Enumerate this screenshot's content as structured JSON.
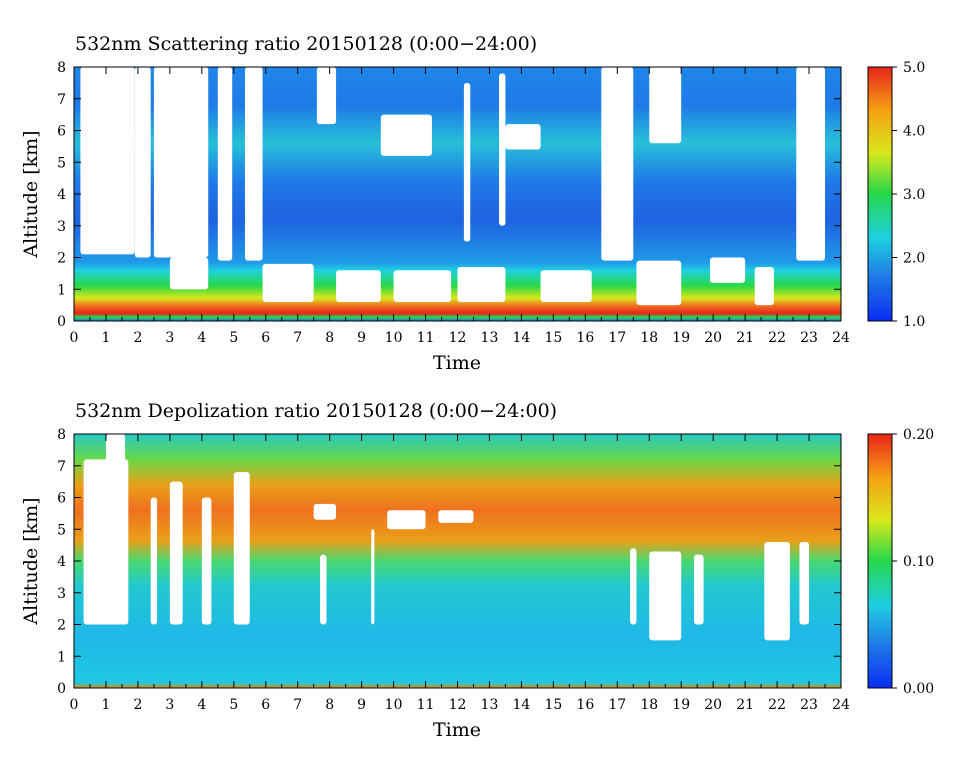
{
  "chart_data": [
    {
      "type": "heatmap",
      "title": "532nm Scattering ratio  20150128 (0:00−24:00)",
      "xlabel": "Time",
      "ylabel": "Altitude [km]",
      "xlim": [
        0,
        24
      ],
      "ylim": [
        0,
        8
      ],
      "x_ticks": [
        "0",
        "1",
        "2",
        "3",
        "4",
        "5",
        "6",
        "7",
        "8",
        "9",
        "10",
        "11",
        "12",
        "13",
        "14",
        "15",
        "16",
        "17",
        "18",
        "19",
        "20",
        "21",
        "22",
        "23",
        "24"
      ],
      "y_ticks": [
        "0",
        "1",
        "2",
        "3",
        "4",
        "5",
        "6",
        "7",
        "8"
      ],
      "colorbar": {
        "range": [
          1.0,
          5.0
        ],
        "ticks": [
          "1.0",
          "2.0",
          "3.0",
          "4.0",
          "5.0"
        ]
      },
      "colormap": [
        "#0a2cf0",
        "#1f7ae8",
        "#1fd0e0",
        "#26d84a",
        "#d9e81a",
        "#f5a014",
        "#e8241a"
      ],
      "grid": false,
      "features": {
        "boundary_layer_top_km": 1.8,
        "high_near_surface_band_km": [
          0.3,
          0.55
        ],
        "cloud_gaps_masked_white": true
      }
    },
    {
      "type": "heatmap",
      "title": "532nm Depolization ratio  20150128 (0:00−24:00)",
      "xlabel": "Time",
      "ylabel": "Altitude [km]",
      "xlim": [
        0,
        24
      ],
      "ylim": [
        0,
        8
      ],
      "x_ticks": [
        "0",
        "1",
        "2",
        "3",
        "4",
        "5",
        "6",
        "7",
        "8",
        "9",
        "10",
        "11",
        "12",
        "13",
        "14",
        "15",
        "16",
        "17",
        "18",
        "19",
        "20",
        "21",
        "22",
        "23",
        "24"
      ],
      "y_ticks": [
        "0",
        "1",
        "2",
        "3",
        "4",
        "5",
        "6",
        "7",
        "8"
      ],
      "colorbar": {
        "range": [
          0.0,
          0.2
        ],
        "ticks": [
          "0.00",
          "0.10",
          "0.20"
        ]
      },
      "colormap": [
        "#0a2cf0",
        "#1f7ae8",
        "#1fd0e0",
        "#26d84a",
        "#d9e81a",
        "#f5a014",
        "#e8241a"
      ],
      "grid": false,
      "features": {
        "high_depolarization_layer_km": [
          4.5,
          6.5
        ],
        "low_depolarization_below_km": 4.0,
        "cloud_gaps_masked_white": true
      }
    }
  ]
}
